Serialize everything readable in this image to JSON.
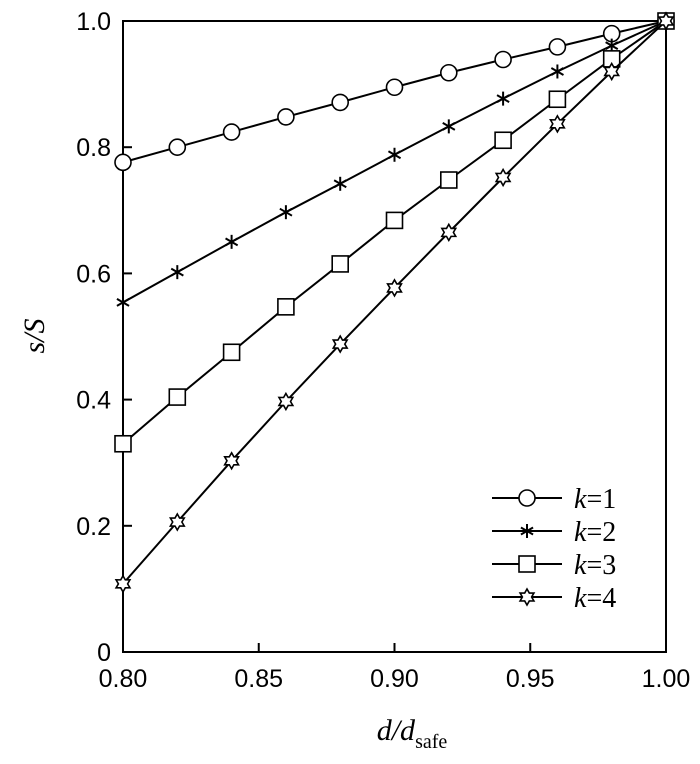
{
  "chart_data": {
    "type": "line",
    "xlabel": {
      "main": "d/d",
      "sub": "safe"
    },
    "ylabel": "s/S",
    "xlim": [
      0.8,
      1.0
    ],
    "ylim": [
      0,
      1.0
    ],
    "x_ticks": [
      0.8,
      0.85,
      0.9,
      0.95,
      1.0
    ],
    "x_tick_labels": [
      "0.80",
      "0.85",
      "0.90",
      "0.95",
      "1.00"
    ],
    "y_ticks": [
      0,
      0.2,
      0.4,
      0.6,
      0.8,
      1.0
    ],
    "y_tick_labels": [
      "0",
      "0.2",
      "0.4",
      "0.6",
      "0.8",
      "1.0"
    ],
    "grid": false,
    "legend_position": "bottom-right",
    "x": [
      0.8,
      0.82,
      0.84,
      0.86,
      0.88,
      0.9,
      0.92,
      0.94,
      0.96,
      0.98,
      1.0
    ],
    "series": [
      {
        "name": "k=1",
        "k_label": "k",
        "k_value": "=1",
        "marker": "circle",
        "values": [
          0.776,
          0.8,
          0.824,
          0.848,
          0.871,
          0.895,
          0.918,
          0.939,
          0.959,
          0.98,
          1.0
        ]
      },
      {
        "name": "k=2",
        "k_label": "k",
        "k_value": "=2",
        "marker": "asterisk",
        "values": [
          0.554,
          0.602,
          0.65,
          0.697,
          0.742,
          0.788,
          0.833,
          0.877,
          0.92,
          0.961,
          1.0
        ]
      },
      {
        "name": "k=3",
        "k_label": "k",
        "k_value": "=3",
        "marker": "square",
        "values": [
          0.33,
          0.404,
          0.475,
          0.547,
          0.615,
          0.684,
          0.748,
          0.811,
          0.876,
          0.94,
          1.0
        ]
      },
      {
        "name": "k=4",
        "k_label": "k",
        "k_value": "=4",
        "marker": "star",
        "values": [
          0.108,
          0.206,
          0.303,
          0.397,
          0.488,
          0.577,
          0.665,
          0.752,
          0.837,
          0.92,
          1.0
        ]
      }
    ]
  }
}
